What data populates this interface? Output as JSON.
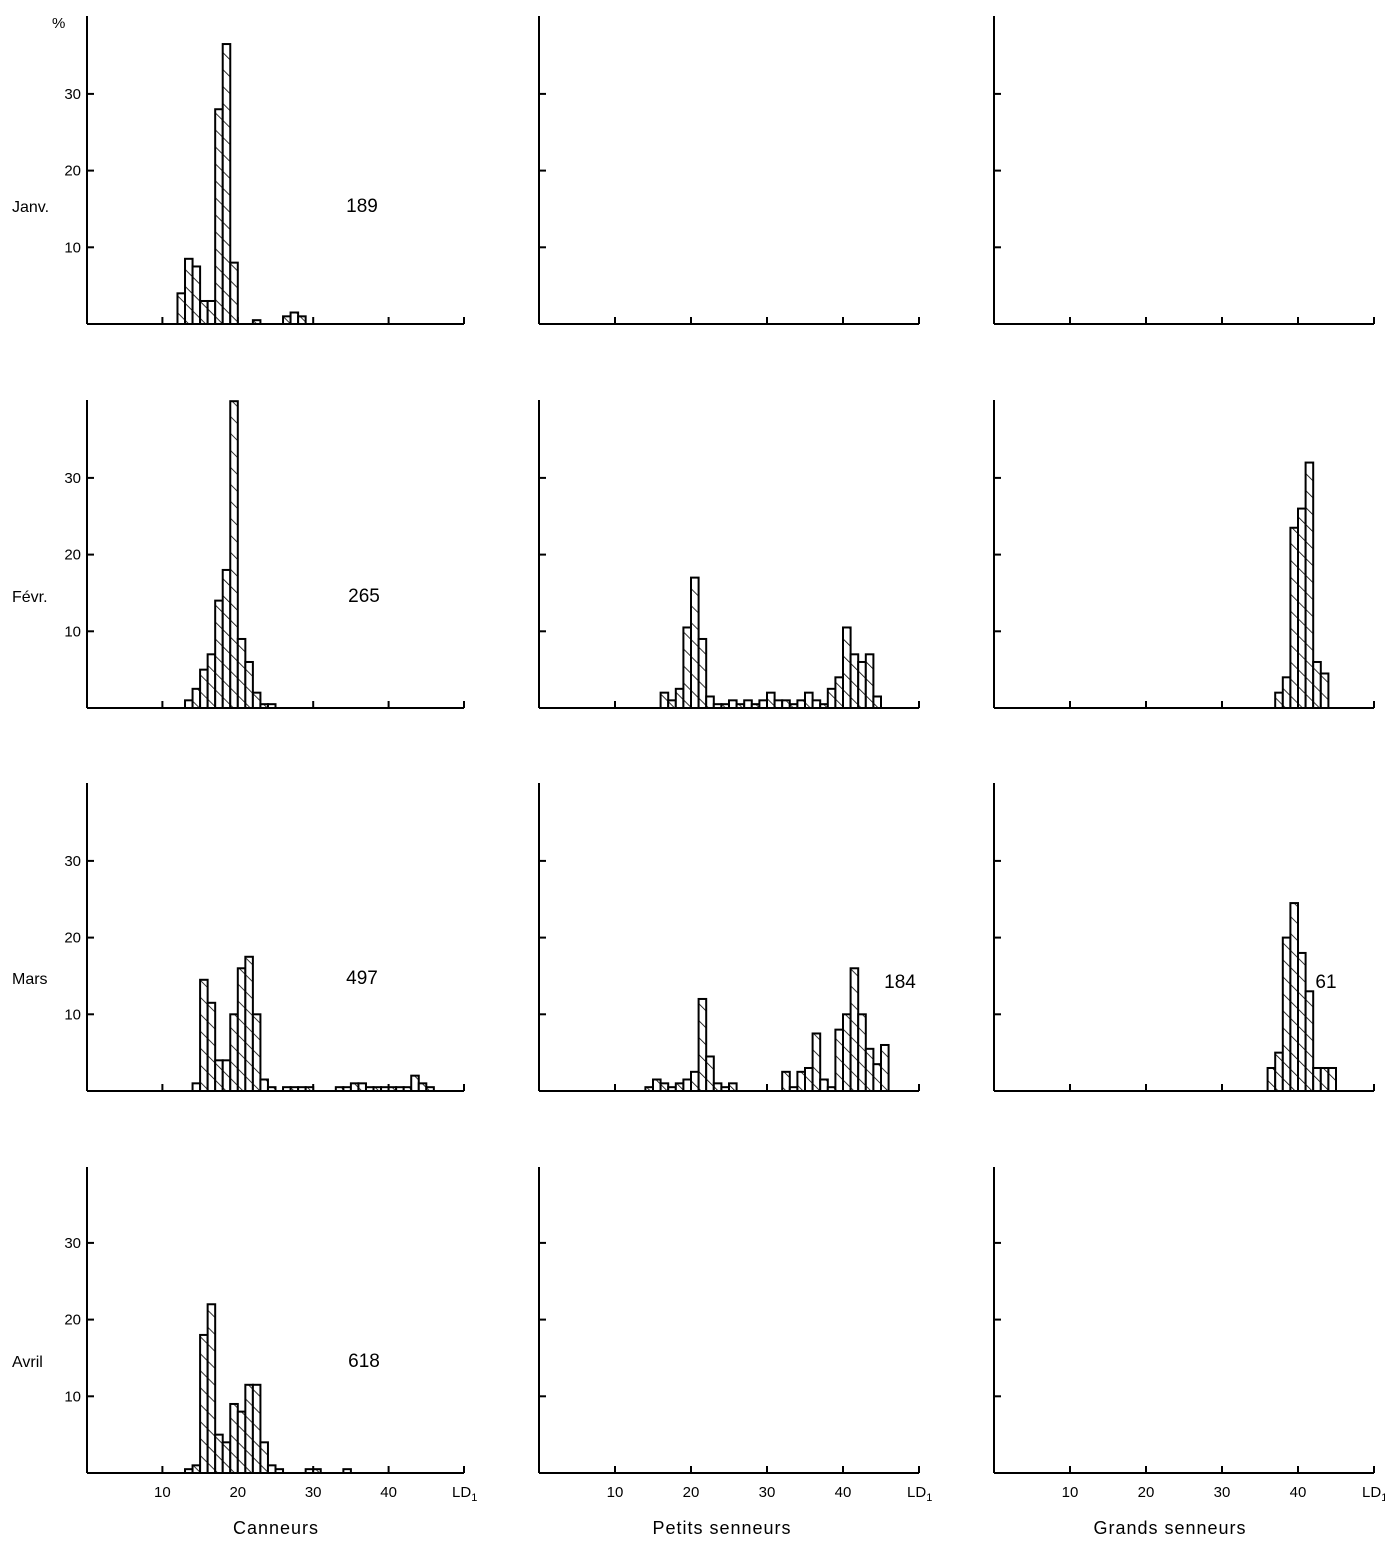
{
  "figure": {
    "y_unit_label": "%",
    "x_unit_label": "LD",
    "x_unit_subscript": "1",
    "x_tick_labels": [
      "10",
      "20",
      "30",
      "40"
    ],
    "y_tick_labels": [
      "10",
      "20",
      "30"
    ]
  },
  "chart_data": [
    {
      "type": "bar",
      "row": "Janv.",
      "group": "Canneurs",
      "count_label": "189",
      "ylim": [
        0,
        40
      ],
      "xlim": [
        0,
        50
      ],
      "x": [
        12,
        13,
        14,
        15,
        16,
        17,
        18,
        19,
        20,
        22,
        23,
        26,
        27,
        28
      ],
      "values": [
        4,
        8.5,
        7.5,
        3,
        3,
        28,
        36.5,
        8,
        0,
        0.5,
        0,
        1,
        1.5,
        1
      ]
    },
    {
      "type": "bar",
      "row": "Janv.",
      "group": "Petits senneurs",
      "count_label": "",
      "ylim": [
        0,
        40
      ],
      "xlim": [
        0,
        50
      ],
      "x": [],
      "values": []
    },
    {
      "type": "bar",
      "row": "Janv.",
      "group": "Grands senneurs",
      "count_label": "",
      "ylim": [
        0,
        40
      ],
      "xlim": [
        0,
        50
      ],
      "x": [],
      "values": []
    },
    {
      "type": "bar",
      "row": "Févr.",
      "group": "Canneurs",
      "count_label": "265",
      "ylim": [
        0,
        40
      ],
      "xlim": [
        0,
        50
      ],
      "x": [
        13,
        14,
        15,
        16,
        17,
        18,
        19,
        20,
        21,
        22,
        23,
        24
      ],
      "values": [
        1,
        2.5,
        5,
        7,
        14,
        18,
        40,
        9,
        6,
        2,
        0.5,
        0.5
      ]
    },
    {
      "type": "bar",
      "row": "Févr.",
      "group": "Petits senneurs",
      "count_label": "",
      "ylim": [
        0,
        40
      ],
      "xlim": [
        0,
        50
      ],
      "x": [
        16,
        17,
        18,
        19,
        20,
        21,
        22,
        23,
        24,
        25,
        26,
        27,
        28,
        29,
        30,
        31,
        32,
        33,
        34,
        35,
        36,
        37,
        38,
        39,
        40,
        41,
        42,
        43,
        44
      ],
      "values": [
        2,
        1,
        2.5,
        10.5,
        17,
        9,
        1.5,
        0.5,
        0.5,
        1,
        0.5,
        1,
        0.5,
        1,
        2,
        1,
        1,
        0.5,
        1,
        2,
        1,
        0.5,
        2.5,
        4,
        10.5,
        7,
        6,
        7,
        1.5
      ]
    },
    {
      "type": "bar",
      "row": "Févr.",
      "group": "Grands senneurs",
      "count_label": "",
      "ylim": [
        0,
        40
      ],
      "xlim": [
        0,
        50
      ],
      "x": [
        37,
        38,
        39,
        40,
        41,
        42,
        43
      ],
      "values": [
        2,
        4,
        23.5,
        26,
        32,
        6,
        4.5
      ]
    },
    {
      "type": "bar",
      "row": "Mars",
      "group": "Canneurs",
      "count_label": "497",
      "ylim": [
        0,
        40
      ],
      "xlim": [
        0,
        50
      ],
      "x": [
        14,
        15,
        16,
        17,
        18,
        19,
        20,
        21,
        22,
        23,
        24,
        26,
        27,
        28,
        29,
        33,
        34,
        35,
        36,
        37,
        38,
        39,
        40,
        41,
        42,
        43,
        44,
        45
      ],
      "values": [
        1,
        14.5,
        11.5,
        4,
        4,
        10,
        16,
        17.5,
        10,
        1.5,
        0.5,
        0.5,
        0.5,
        0.5,
        0.5,
        0.5,
        0.5,
        1,
        1,
        0.5,
        0.5,
        0.5,
        0.5,
        0.5,
        0.5,
        2,
        1,
        0.5
      ]
    },
    {
      "type": "bar",
      "row": "Mars",
      "group": "Petits senneurs",
      "count_label": "184",
      "ylim": [
        0,
        40
      ],
      "xlim": [
        0,
        50
      ],
      "x": [
        14,
        15,
        16,
        17,
        18,
        19,
        20,
        21,
        22,
        23,
        24,
        25,
        32,
        33,
        34,
        35,
        36,
        37,
        38,
        39,
        40,
        41,
        42,
        43,
        44,
        45
      ],
      "values": [
        0.5,
        1.5,
        1,
        0.5,
        1,
        1.5,
        2.5,
        12,
        4.5,
        1,
        0.5,
        1,
        2.5,
        0.5,
        2.5,
        3,
        7.5,
        1.5,
        0.5,
        8,
        10,
        16,
        10,
        5.5,
        3.5,
        6
      ]
    },
    {
      "type": "bar",
      "row": "Mars",
      "group": "Grands senneurs",
      "count_label": "61",
      "ylim": [
        0,
        40
      ],
      "xlim": [
        0,
        50
      ],
      "x": [
        36,
        37,
        38,
        39,
        40,
        41,
        42,
        43,
        44
      ],
      "values": [
        3,
        5,
        20,
        24.5,
        18,
        13,
        3,
        3,
        3
      ]
    },
    {
      "type": "bar",
      "row": "Avril",
      "group": "Canneurs",
      "count_label": "618",
      "ylim": [
        0,
        40
      ],
      "xlim": [
        0,
        50
      ],
      "x": [
        13,
        14,
        15,
        16,
        17,
        18,
        19,
        20,
        21,
        22,
        23,
        24,
        25,
        29,
        30,
        34
      ],
      "values": [
        0.5,
        1,
        18,
        22,
        5,
        4,
        9,
        8,
        11.5,
        11.5,
        4,
        1,
        0.5,
        0.5,
        0.5,
        0.5
      ]
    },
    {
      "type": "bar",
      "row": "Avril",
      "group": "Petits senneurs",
      "count_label": "",
      "ylim": [
        0,
        40
      ],
      "xlim": [
        0,
        50
      ],
      "x": [],
      "values": []
    },
    {
      "type": "bar",
      "row": "Avril",
      "group": "Grands senneurs",
      "count_label": "",
      "ylim": [
        0,
        40
      ],
      "xlim": [
        0,
        50
      ],
      "x": [],
      "values": []
    }
  ],
  "labels": {
    "rows": [
      "Janv.",
      "Févr.",
      "Mars",
      "Avril"
    ],
    "groups": [
      "Canneurs",
      "Petits senneurs",
      "Grands senneurs"
    ]
  }
}
